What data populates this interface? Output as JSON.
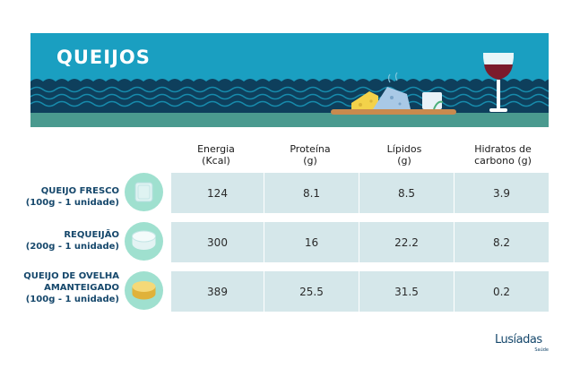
{
  "banner": {
    "title": "QUEIJOS"
  },
  "columns": [
    {
      "label": "Energia\n(Kcal)"
    },
    {
      "label": "Proteína\n(g)"
    },
    {
      "label": "Lípidos\n(g)"
    },
    {
      "label": "Hidratos de\ncarbono (g)"
    }
  ],
  "rows": [
    {
      "label": "QUEIJO FRESCO\n(100g - 1 unidade)",
      "icon": "fresh-cheese-icon",
      "values": [
        "124",
        "8.1",
        "8.5",
        "3.9"
      ]
    },
    {
      "label": "REQUEIJÃO\n(200g - 1 unidade)",
      "icon": "requeijao-icon",
      "values": [
        "300",
        "16",
        "22.2",
        "8.2"
      ]
    },
    {
      "label": "QUEIJO DE OVELHA\nAMANTEIGADO\n(100g - 1 unidade)",
      "icon": "sheep-cheese-icon",
      "values": [
        "389",
        "25.5",
        "31.5",
        "0.2"
      ]
    }
  ],
  "logo": {
    "name": "Lusíadas",
    "sub": "Saúde"
  },
  "colors": {
    "banner": "#1a9fc1",
    "wave_dark": "#0e3f5c",
    "sea_band": "#4a9a8f",
    "row_band": "#d5e7ea",
    "label": "#15476b",
    "icon_circle": "#9fe0cf"
  }
}
